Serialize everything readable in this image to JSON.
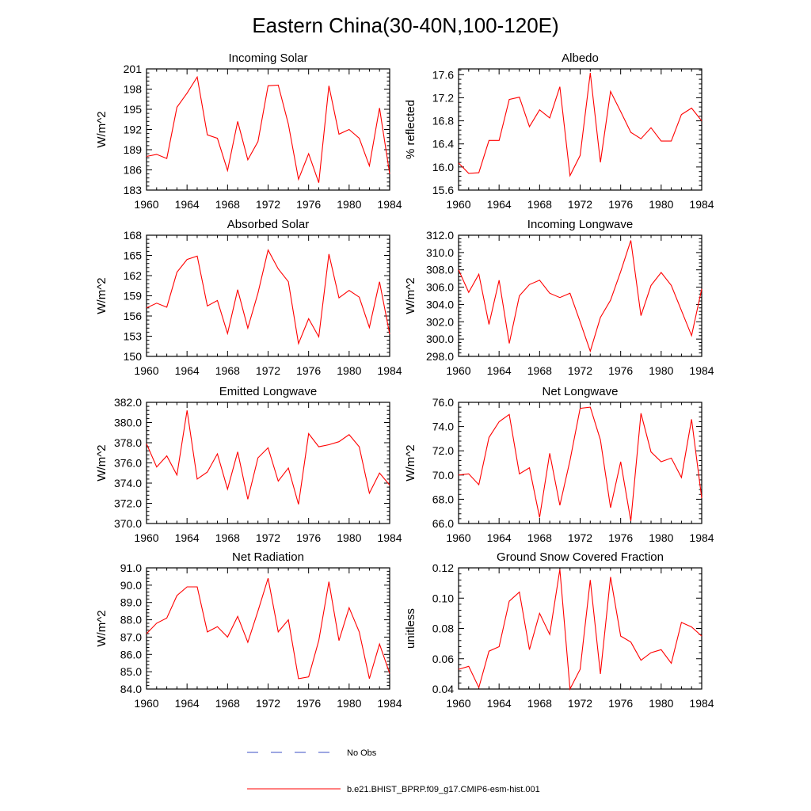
{
  "title": "Eastern China(30-40N,100-120E)",
  "legend": [
    {
      "label": "No Obs",
      "color": "#3b4fc4",
      "style": "dashed"
    },
    {
      "label": "b.e21.BHIST_BPRP.f09_g17.CMIP6-esm-hist.001",
      "color": "#ff0000",
      "style": "solid"
    }
  ],
  "chart_data": [
    {
      "type": "line",
      "title": "Incoming Solar",
      "xlabel": "",
      "ylabel": "W/m^2",
      "xlim": [
        1960,
        1984
      ],
      "ylim": [
        183,
        201
      ],
      "xticks": [
        "1960",
        "1964",
        "1968",
        "1972",
        "1976",
        "1980",
        "1984"
      ],
      "yticks": [
        "183",
        "186",
        "189",
        "192",
        "195",
        "198",
        "201"
      ],
      "series": [
        {
          "color": "#ff0000",
          "x": [
            1960,
            1961,
            1962,
            1963,
            1964,
            1965,
            1966,
            1967,
            1968,
            1969,
            1970,
            1971,
            1972,
            1973,
            1974,
            1975,
            1976,
            1977,
            1978,
            1979,
            1980,
            1981,
            1982,
            1983,
            1984
          ],
          "values": [
            188.0,
            188.3,
            187.7,
            195.3,
            197.4,
            199.8,
            191.2,
            190.7,
            185.9,
            193.2,
            187.5,
            190.2,
            198.5,
            198.6,
            192.8,
            184.6,
            188.4,
            184.1,
            198.5,
            191.3,
            192.0,
            190.7,
            186.6,
            195.2,
            185.4
          ]
        }
      ]
    },
    {
      "type": "line",
      "title": "Albedo",
      "xlabel": "",
      "ylabel": "% reflected",
      "xlim": [
        1960,
        1984
      ],
      "ylim": [
        15.6,
        17.7
      ],
      "xticks": [
        "1960",
        "1964",
        "1968",
        "1972",
        "1976",
        "1980",
        "1984"
      ],
      "yticks": [
        "15.6",
        "16.0",
        "16.4",
        "16.8",
        "17.2",
        "17.6"
      ],
      "series": [
        {
          "color": "#ff0000",
          "x": [
            1960,
            1961,
            1962,
            1963,
            1964,
            1965,
            1966,
            1967,
            1968,
            1969,
            1970,
            1971,
            1972,
            1973,
            1974,
            1975,
            1976,
            1977,
            1978,
            1979,
            1980,
            1981,
            1982,
            1983,
            1984
          ],
          "values": [
            16.07,
            15.89,
            15.9,
            16.46,
            16.46,
            17.17,
            17.21,
            16.7,
            16.99,
            16.85,
            17.39,
            15.85,
            16.2,
            17.63,
            16.08,
            17.31,
            16.96,
            16.6,
            16.49,
            16.68,
            16.45,
            16.45,
            16.91,
            17.02,
            16.8
          ]
        }
      ]
    },
    {
      "type": "line",
      "title": "Absorbed Solar",
      "xlabel": "",
      "ylabel": "W/m^2",
      "xlim": [
        1960,
        1984
      ],
      "ylim": [
        150,
        168
      ],
      "xticks": [
        "1960",
        "1964",
        "1968",
        "1972",
        "1976",
        "1980",
        "1984"
      ],
      "yticks": [
        "150",
        "153",
        "156",
        "159",
        "162",
        "165",
        "168"
      ],
      "series": [
        {
          "color": "#ff0000",
          "x": [
            1960,
            1961,
            1962,
            1963,
            1964,
            1965,
            1966,
            1967,
            1968,
            1969,
            1970,
            1971,
            1972,
            1973,
            1974,
            1975,
            1976,
            1977,
            1978,
            1979,
            1980,
            1981,
            1982,
            1983,
            1984
          ],
          "values": [
            157.2,
            157.9,
            157.3,
            162.5,
            164.4,
            164.9,
            157.5,
            158.3,
            153.4,
            159.9,
            154.2,
            159.4,
            165.8,
            163.0,
            161.1,
            151.9,
            155.6,
            152.9,
            165.2,
            158.7,
            159.8,
            158.8,
            154.3,
            161.1,
            153.3
          ]
        }
      ]
    },
    {
      "type": "line",
      "title": "Incoming Longwave",
      "xlabel": "",
      "ylabel": "W/m^2",
      "xlim": [
        1960,
        1984
      ],
      "ylim": [
        298.0,
        312.0
      ],
      "xticks": [
        "1960",
        "1964",
        "1968",
        "1972",
        "1976",
        "1980",
        "1984"
      ],
      "yticks": [
        "298.0",
        "300.0",
        "302.0",
        "304.0",
        "306.0",
        "308.0",
        "310.0",
        "312.0"
      ],
      "series": [
        {
          "color": "#ff0000",
          "x": [
            1960,
            1961,
            1962,
            1963,
            1964,
            1965,
            1966,
            1967,
            1968,
            1969,
            1970,
            1971,
            1972,
            1973,
            1974,
            1975,
            1976,
            1977,
            1978,
            1979,
            1980,
            1981,
            1982,
            1983,
            1984
          ],
          "values": [
            308.0,
            305.4,
            307.5,
            301.7,
            306.8,
            299.5,
            305.0,
            306.3,
            306.8,
            305.3,
            304.8,
            305.3,
            302.0,
            298.6,
            302.5,
            304.5,
            307.8,
            311.4,
            302.7,
            306.2,
            307.7,
            306.2,
            303.3,
            300.4,
            305.8
          ]
        }
      ]
    },
    {
      "type": "line",
      "title": "Emitted Longwave",
      "xlabel": "",
      "ylabel": "W/m^2",
      "xlim": [
        1960,
        1984
      ],
      "ylim": [
        370.0,
        382.0
      ],
      "xticks": [
        "1960",
        "1964",
        "1968",
        "1972",
        "1976",
        "1980",
        "1984"
      ],
      "yticks": [
        "370.0",
        "372.0",
        "374.0",
        "376.0",
        "378.0",
        "380.0",
        "382.0"
      ],
      "series": [
        {
          "color": "#ff0000",
          "x": [
            1960,
            1961,
            1962,
            1963,
            1964,
            1965,
            1966,
            1967,
            1968,
            1969,
            1970,
            1971,
            1972,
            1973,
            1974,
            1975,
            1976,
            1977,
            1978,
            1979,
            1980,
            1981,
            1982,
            1983,
            1984
          ],
          "values": [
            377.9,
            375.6,
            376.7,
            374.8,
            381.2,
            374.4,
            375.1,
            376.9,
            373.4,
            377.1,
            372.4,
            376.5,
            377.5,
            374.2,
            375.5,
            371.9,
            378.9,
            377.6,
            377.8,
            378.1,
            378.8,
            377.6,
            373.0,
            375.0,
            373.8
          ]
        }
      ]
    },
    {
      "type": "line",
      "title": "Net Longwave",
      "xlabel": "",
      "ylabel": "W/m^2",
      "xlim": [
        1960,
        1984
      ],
      "ylim": [
        66.0,
        76.0
      ],
      "xticks": [
        "1960",
        "1964",
        "1968",
        "1972",
        "1976",
        "1980",
        "1984"
      ],
      "yticks": [
        "66.0",
        "68.0",
        "70.0",
        "72.0",
        "74.0",
        "76.0"
      ],
      "series": [
        {
          "color": "#ff0000",
          "x": [
            1960,
            1961,
            1962,
            1963,
            1964,
            1965,
            1966,
            1967,
            1968,
            1969,
            1970,
            1971,
            1972,
            1973,
            1974,
            1975,
            1976,
            1977,
            1978,
            1979,
            1980,
            1981,
            1982,
            1983,
            1984
          ],
          "values": [
            70.0,
            70.1,
            69.2,
            73.1,
            74.4,
            75.0,
            70.1,
            70.6,
            66.5,
            71.8,
            67.5,
            71.2,
            75.5,
            75.6,
            72.9,
            67.3,
            71.1,
            66.2,
            75.1,
            71.9,
            71.1,
            71.4,
            69.8,
            74.6,
            68.1
          ]
        }
      ]
    },
    {
      "type": "line",
      "title": "Net Radiation",
      "xlabel": "",
      "ylabel": "W/m^2",
      "xlim": [
        1960,
        1984
      ],
      "ylim": [
        84.0,
        91.0
      ],
      "xticks": [
        "1960",
        "1964",
        "1968",
        "1972",
        "1976",
        "1980",
        "1984"
      ],
      "yticks": [
        "84.0",
        "85.0",
        "86.0",
        "87.0",
        "88.0",
        "89.0",
        "90.0",
        "91.0"
      ],
      "series": [
        {
          "color": "#ff0000",
          "x": [
            1960,
            1961,
            1962,
            1963,
            1964,
            1965,
            1966,
            1967,
            1968,
            1969,
            1970,
            1971,
            1972,
            1973,
            1974,
            1975,
            1976,
            1977,
            1978,
            1979,
            1980,
            1981,
            1982,
            1983,
            1984
          ],
          "values": [
            87.2,
            87.8,
            88.1,
            89.4,
            89.9,
            89.9,
            87.3,
            87.6,
            87.0,
            88.2,
            86.7,
            88.5,
            90.4,
            87.3,
            88.0,
            84.6,
            84.7,
            86.8,
            90.2,
            86.8,
            88.7,
            87.3,
            84.6,
            86.6,
            84.9
          ]
        }
      ]
    },
    {
      "type": "line",
      "title": "Ground Snow Covered Fraction",
      "xlabel": "",
      "ylabel": "unitless",
      "xlim": [
        1960,
        1984
      ],
      "ylim": [
        0.04,
        0.12
      ],
      "xticks": [
        "1960",
        "1964",
        "1968",
        "1972",
        "1976",
        "1980",
        "1984"
      ],
      "yticks": [
        "0.04",
        "0.06",
        "0.08",
        "0.10",
        "0.12"
      ],
      "series": [
        {
          "color": "#ff0000",
          "x": [
            1960,
            1961,
            1962,
            1963,
            1964,
            1965,
            1966,
            1967,
            1968,
            1969,
            1970,
            1971,
            1972,
            1973,
            1974,
            1975,
            1976,
            1977,
            1978,
            1979,
            1980,
            1981,
            1982,
            1983,
            1984
          ],
          "values": [
            0.053,
            0.055,
            0.041,
            0.065,
            0.068,
            0.098,
            0.104,
            0.066,
            0.09,
            0.076,
            0.119,
            0.04,
            0.053,
            0.112,
            0.05,
            0.114,
            0.075,
            0.071,
            0.059,
            0.064,
            0.066,
            0.057,
            0.084,
            0.081,
            0.075
          ]
        }
      ]
    }
  ]
}
